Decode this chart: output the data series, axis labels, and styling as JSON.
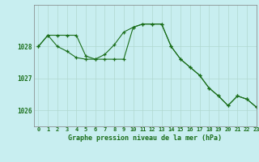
{
  "title": "Graphe pression niveau de la mer (hPa)",
  "background_color": "#c8eef0",
  "grid_color": "#b0d8d0",
  "line_color": "#1a6e1a",
  "xlim": [
    -0.5,
    23
  ],
  "ylim": [
    1025.5,
    1029.3
  ],
  "yticks": [
    1026,
    1027,
    1028
  ],
  "xticks": [
    0,
    1,
    2,
    3,
    4,
    5,
    6,
    7,
    8,
    9,
    10,
    11,
    12,
    13,
    14,
    15,
    16,
    17,
    18,
    19,
    20,
    21,
    22,
    23
  ],
  "series1": [
    1028.0,
    1028.35,
    1028.35,
    1028.35,
    1028.35,
    1027.7,
    1027.6,
    1027.6,
    1027.6,
    1027.6,
    1028.6,
    1028.7,
    1028.7,
    1028.7,
    1028.0,
    1027.6,
    1027.35,
    1027.1,
    1026.7,
    1026.45,
    1026.15,
    1026.45,
    1026.35,
    1026.1
  ],
  "series2": [
    1028.0,
    1028.35,
    1028.0,
    1027.85,
    1027.65,
    1027.6,
    1027.6,
    1027.75,
    1028.05,
    1028.45,
    1028.6,
    1028.7,
    1028.7,
    1028.7,
    1028.0,
    1027.6,
    1027.35,
    1027.1,
    1026.7,
    1026.45,
    1026.15,
    1026.45,
    1026.35,
    1026.1
  ]
}
